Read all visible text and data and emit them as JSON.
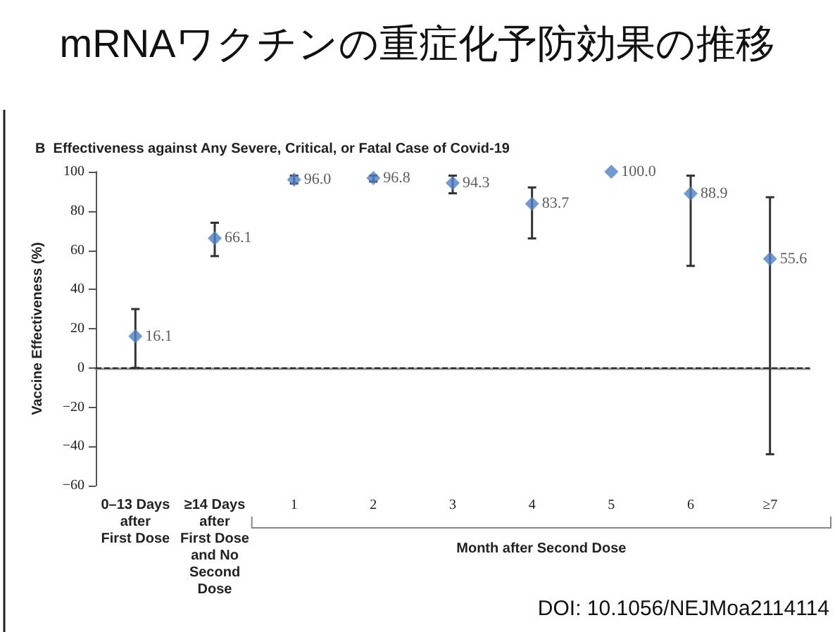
{
  "chart_data": {
    "type": "scatter",
    "title": "mRNAワクチンの重症化予防効果の推移",
    "subtitle": "B  Effectiveness against Any Severe, Critical, or Fatal Case of Covid-19",
    "ylabel": "Vaccine Effectiveness (%)",
    "xlabel": "Month after Second Dose",
    "annotations": [
      "DOI: 10.1056/NEJMoa2114114"
    ],
    "categories": [
      "0–13 Days\nafter\nFirst Dose",
      "≥14 Days\nafter\nFirst Dose\nand No\nSecond\nDose",
      "1",
      "2",
      "3",
      "4",
      "5",
      "6",
      "≥7"
    ],
    "series": [
      {
        "color": "#4f81c7",
        "values": [
          16.1,
          66.1,
          96.0,
          96.8,
          94.3,
          83.7,
          100.0,
          88.9,
          55.6
        ],
        "value_labels": [
          "16.1",
          "66.1",
          "96.0",
          "96.8",
          "94.3",
          "83.7",
          "100.0",
          "88.9",
          "55.6"
        ],
        "errors": [
          [
            0,
            30
          ],
          [
            57,
            74
          ],
          [
            94,
            98
          ],
          [
            95,
            98
          ],
          [
            89,
            98
          ],
          [
            66,
            92
          ],
          null,
          [
            52,
            98
          ],
          [
            -44,
            87
          ]
        ]
      }
    ],
    "ylim": [
      -60,
      100
    ],
    "yticks": [
      -60,
      -40,
      -20,
      0,
      20,
      40,
      60,
      80,
      100
    ],
    "marker": "diamond",
    "grid": false,
    "ref_lines": [
      {
        "axis": "y",
        "value": 0,
        "line_style": "dashed",
        "color": "#222222"
      }
    ]
  }
}
